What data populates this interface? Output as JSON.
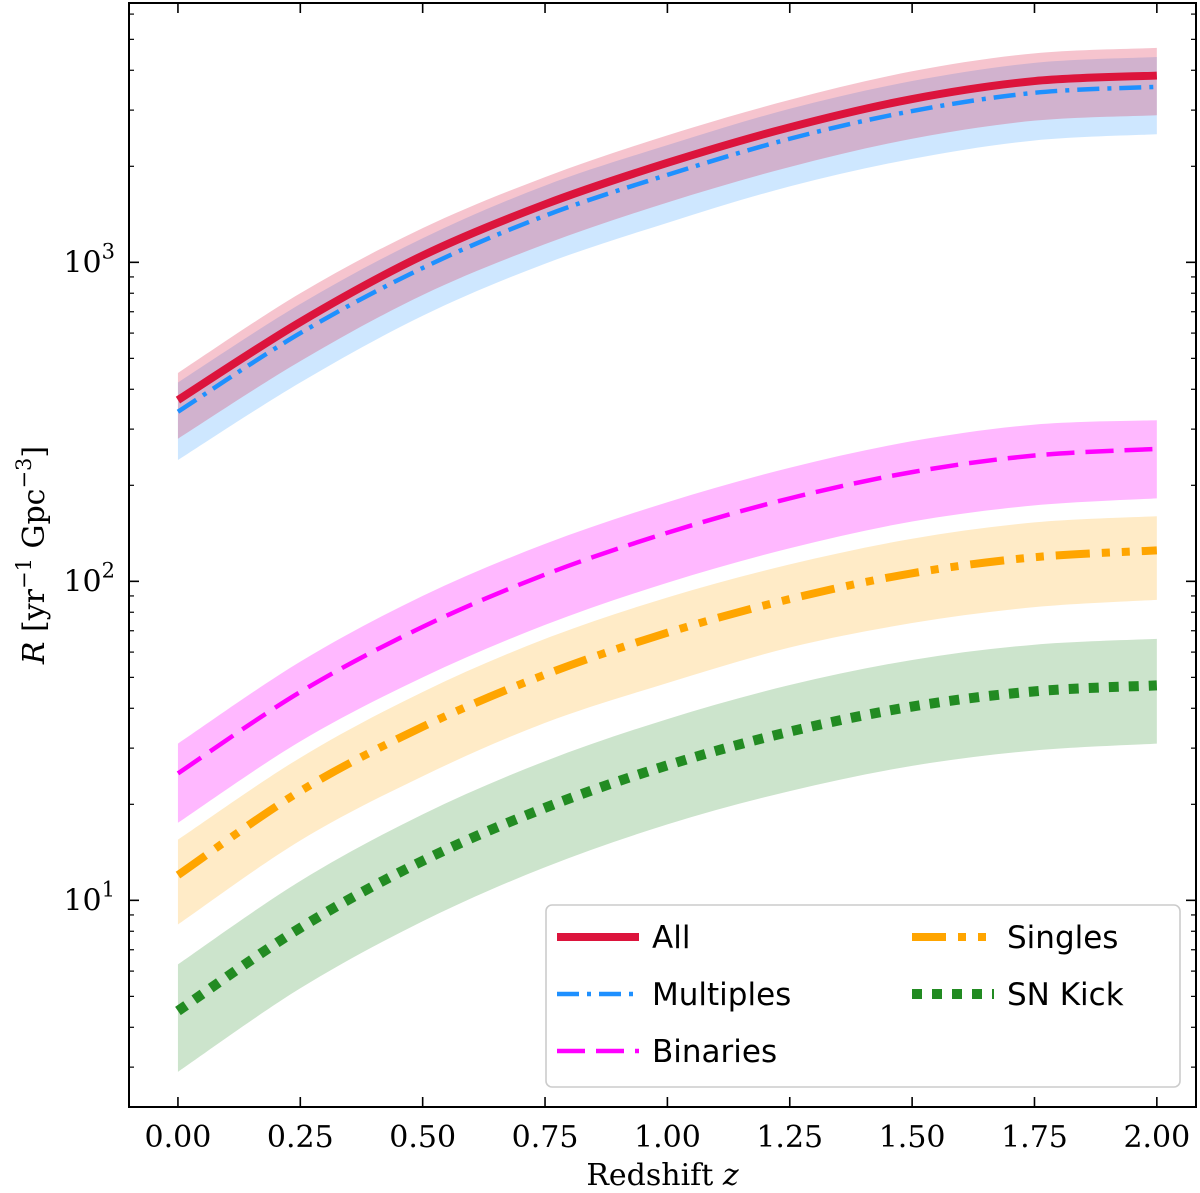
{
  "chart_data": {
    "type": "line",
    "xlabel": "Redshift z",
    "xlabel_text": "Redshift ",
    "xlabel_var": "z",
    "ylabel": "R [yr⁻¹ Gpc⁻³]",
    "ylabel_var": "R",
    "ylabel_text": "[yr",
    "ylabel_exp1": "−1",
    "ylabel_mid": " Gpc",
    "ylabel_exp2": "−3",
    "ylabel_end": "]",
    "yscale": "log",
    "xlim": [
      -0.1,
      2.08
    ],
    "ylim": [
      2.25,
      6500
    ],
    "xticks": [
      0.0,
      0.25,
      0.5,
      0.75,
      1.0,
      1.25,
      1.5,
      1.75,
      2.0
    ],
    "xtick_labels": [
      "0.00",
      "0.25",
      "0.50",
      "0.75",
      "1.00",
      "1.25",
      "1.50",
      "1.75",
      "2.00"
    ],
    "yticks_major": [
      {
        "value": 10,
        "base": "10",
        "exp": "1"
      },
      {
        "value": 100,
        "base": "10",
        "exp": "2"
      },
      {
        "value": 1000,
        "base": "10",
        "exp": "3"
      }
    ],
    "grid": false,
    "legend_position": "bottom-right",
    "x": [
      0.0,
      0.25,
      0.5,
      0.75,
      1.0,
      1.25,
      1.5,
      1.75,
      2.0
    ],
    "series": [
      {
        "name": "All",
        "color": "#dc143c",
        "style": "solid",
        "values": [
          370,
          650,
          1050,
          1520,
          2050,
          2650,
          3250,
          3700,
          3850
        ],
        "lower": [
          280,
          490,
          790,
          1140,
          1540,
          1990,
          2440,
          2780,
          2890
        ],
        "upper": [
          450,
          800,
          1280,
          1850,
          2500,
          3230,
          3970,
          4520,
          4700
        ]
      },
      {
        "name": "Multiples",
        "color": "#1e90ff",
        "style": "dashdot",
        "values": [
          340,
          600,
          960,
          1400,
          1880,
          2440,
          2980,
          3400,
          3550
        ],
        "lower": [
          240,
          420,
          680,
          990,
          1330,
          1730,
          2110,
          2410,
          2520
        ],
        "upper": [
          420,
          740,
          1190,
          1740,
          2330,
          3030,
          3700,
          4220,
          4400
        ]
      },
      {
        "name": "Binaries",
        "color": "#ff00ff",
        "style": "dashed",
        "values": [
          25,
          45,
          72,
          105,
          142,
          182,
          220,
          248,
          260
        ],
        "lower": [
          17.5,
          31.5,
          50,
          73,
          99,
          127,
          154,
          173,
          182
        ],
        "upper": [
          31,
          56,
          90,
          131,
          177,
          227,
          275,
          310,
          320
        ]
      },
      {
        "name": "Singles",
        "color": "#ffa500",
        "style": "dashdotdot",
        "values": [
          12,
          22,
          35,
          51,
          69,
          88,
          106,
          119,
          125
        ],
        "lower": [
          8.4,
          15.4,
          24.5,
          36,
          48,
          62,
          74,
          83,
          87.5
        ],
        "upper": [
          15.5,
          28,
          45,
          66,
          89,
          113,
          136,
          153,
          160
        ]
      },
      {
        "name": "SN Kick",
        "color": "#228b22",
        "style": "dotted",
        "values": [
          4.5,
          8.2,
          13.3,
          19.5,
          26.5,
          33.8,
          40.5,
          45.2,
          47.2
        ],
        "lower": [
          2.9,
          5.3,
          8.6,
          12.7,
          17.3,
          22,
          26.4,
          29.5,
          31
        ],
        "upper": [
          6.3,
          11.5,
          18.6,
          27.3,
          37,
          47.3,
          56.7,
          63.3,
          66
        ]
      }
    ]
  }
}
